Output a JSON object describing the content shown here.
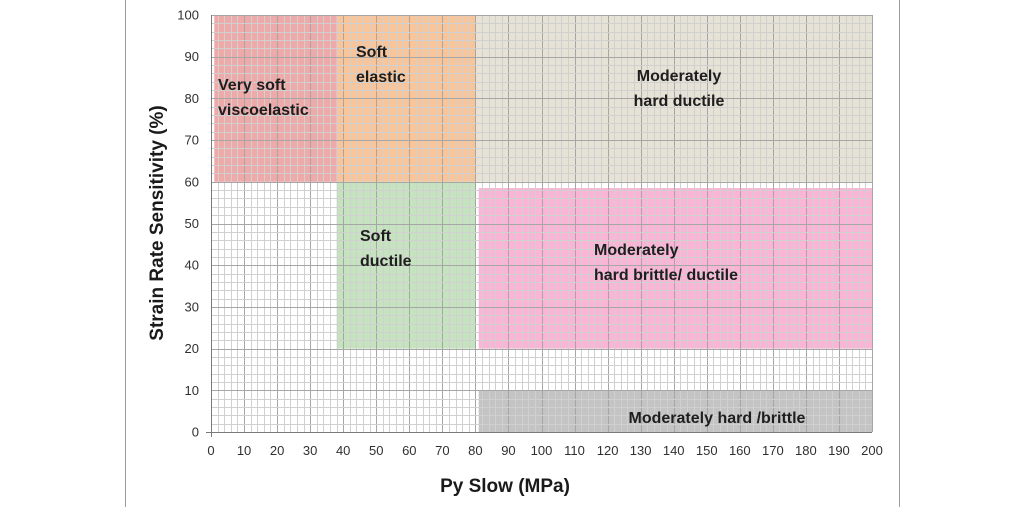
{
  "chart_data": {
    "type": "region-map",
    "title": "",
    "xlabel": "Py Slow (MPa)",
    "ylabel": "Strain Rate Sensitivity (%)",
    "xlim": [
      0,
      200
    ],
    "ylim": [
      0,
      100
    ],
    "x_ticks": [
      0,
      10,
      20,
      30,
      40,
      50,
      60,
      70,
      80,
      90,
      100,
      110,
      120,
      130,
      140,
      150,
      160,
      170,
      180,
      190,
      200
    ],
    "y_ticks": [
      0,
      10,
      20,
      30,
      40,
      50,
      60,
      70,
      80,
      90,
      100
    ],
    "grid": true,
    "minor_grid_step": {
      "x": 2,
      "y": 2
    },
    "regions": [
      {
        "id": "very-soft-viscoelastic",
        "lines": [
          "Very soft",
          "viscoelastic"
        ],
        "x": [
          1,
          38
        ],
        "y": [
          60,
          100
        ],
        "color": "#eea9a9"
      },
      {
        "id": "soft-elastic",
        "lines": [
          "Soft",
          "elastic"
        ],
        "x": [
          38,
          80
        ],
        "y": [
          60,
          100
        ],
        "color": "#f8c59b"
      },
      {
        "id": "moderately-hard-ductile",
        "lines": [
          "Moderately",
          "hard ductile"
        ],
        "x": [
          80,
          200
        ],
        "y": [
          60,
          100
        ],
        "color": "#e6e2d6"
      },
      {
        "id": "soft-ductile",
        "lines": [
          "Soft",
          "ductile"
        ],
        "x": [
          38,
          80
        ],
        "y": [
          20,
          60
        ],
        "color": "#c6e3bf"
      },
      {
        "id": "moderately-hard-brittle-ductile",
        "lines": [
          "Moderately",
          "hard brittle/ ductile"
        ],
        "x": [
          81,
          200
        ],
        "y": [
          20,
          58.5
        ],
        "color": "#fab5d6"
      },
      {
        "id": "moderately-hard-brittle",
        "lines": [
          "Moderately hard /brittle"
        ],
        "x": [
          81,
          200
        ],
        "y": [
          0,
          10
        ],
        "color": "#c4c4c4"
      }
    ]
  }
}
